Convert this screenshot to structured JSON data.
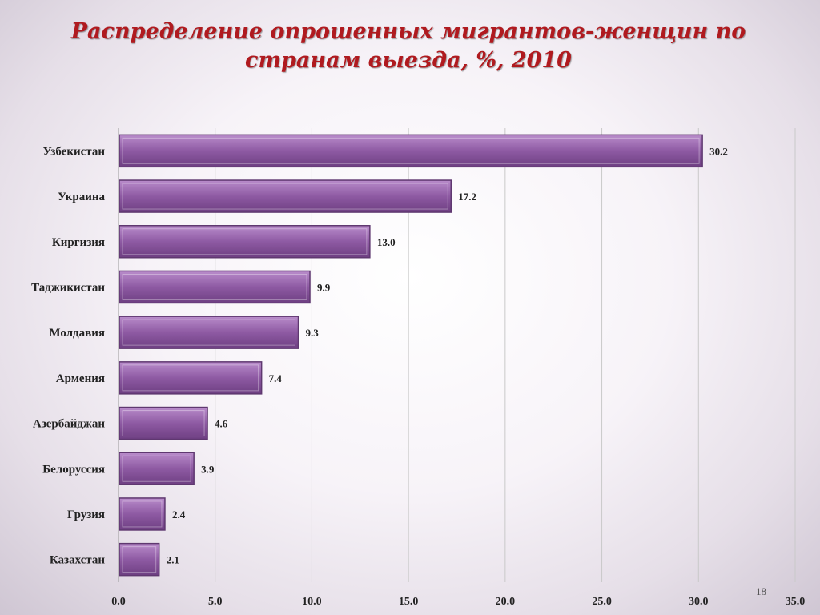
{
  "page": {
    "title_line1": "Распределение опрошенных мигрантов-женщин по",
    "title_line2": "странам выезда, %, 2010",
    "slide_number": "18"
  },
  "colors": {
    "bar_fill": "#8e5aa3",
    "bar_border": "#5f3870",
    "title_color": "#b01a1f"
  },
  "chart_data": {
    "type": "bar",
    "orientation": "horizontal",
    "categories": [
      "Узбекистан",
      "Украина",
      "Киргизия",
      "Таджикистан",
      "Молдавия",
      "Армения",
      "Азербайджан",
      "Белоруссия",
      "Грузия",
      "Казахстан"
    ],
    "values": [
      30.2,
      17.2,
      13.0,
      9.9,
      9.3,
      7.4,
      4.6,
      3.9,
      2.4,
      2.1
    ],
    "value_labels": [
      "30.2",
      "17.2",
      "13.0",
      "9.9",
      "9.3",
      "7.4",
      "4.6",
      "3.9",
      "2.4",
      "2.1"
    ],
    "xlim": [
      0,
      35
    ],
    "ticks": [
      0,
      5,
      10,
      15,
      20,
      25,
      30,
      35
    ],
    "tick_labels": [
      "0.0",
      "5.0",
      "10.0",
      "15.0",
      "20.0",
      "25.0",
      "30.0",
      "35.0"
    ],
    "grid": true,
    "legend": false
  }
}
